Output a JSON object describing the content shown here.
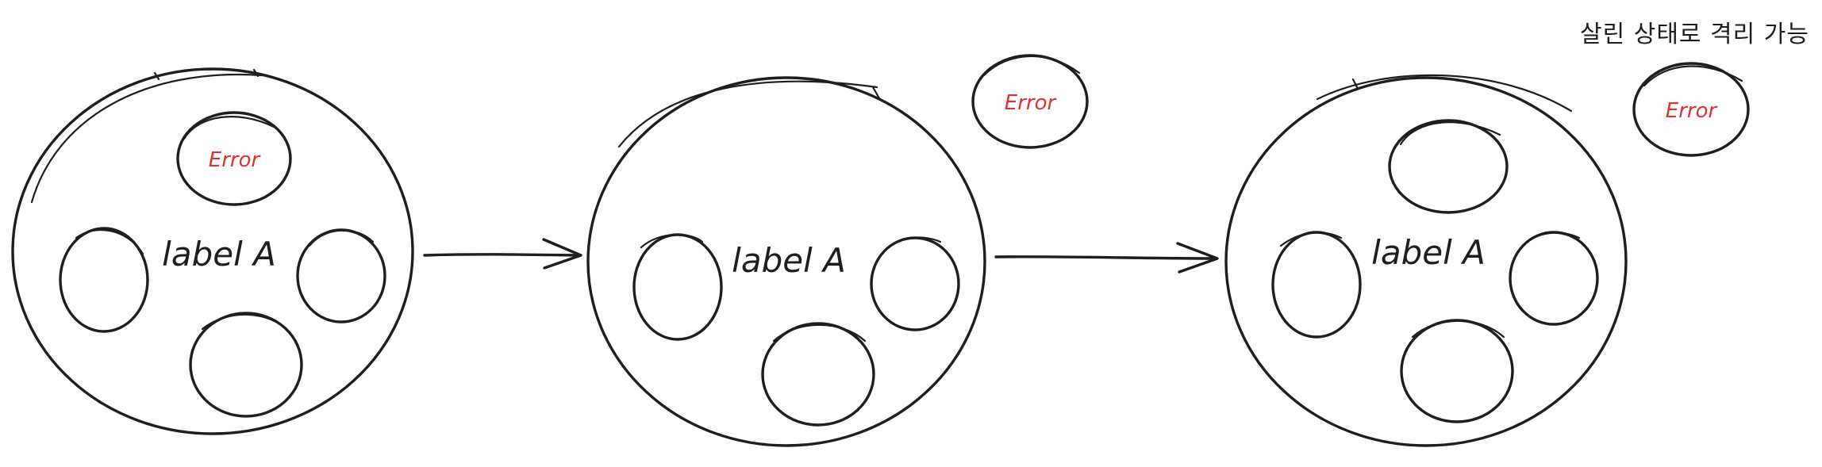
{
  "diagram": {
    "caption": "살린 상태로 격리 가능",
    "stages": [
      {
        "label": "label A",
        "error_label": "Error",
        "error_position": "inside"
      },
      {
        "label": "label A",
        "error_label": "Error",
        "error_position": "outside-detached"
      },
      {
        "label": "label A",
        "error_label": "Error",
        "error_position": "outside-isolated"
      }
    ],
    "colors": {
      "ink": "#1e1e1e",
      "error": "#e03131",
      "background": "#ffffff"
    }
  }
}
